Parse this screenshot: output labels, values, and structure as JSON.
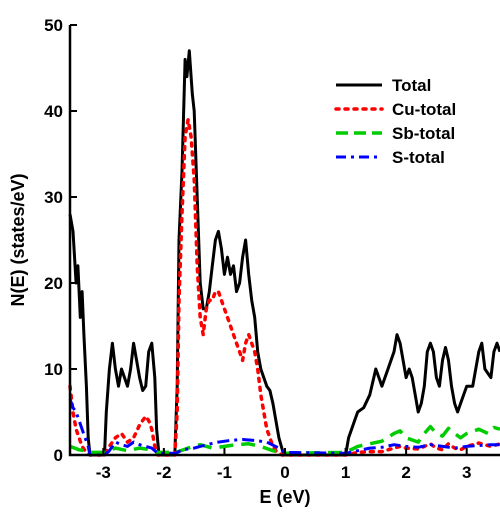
{
  "chart_data": {
    "type": "line",
    "title": "",
    "xlabel": "E (eV)",
    "ylabel": "N(E) (states/eV)",
    "xlim": [
      -3.55,
      3.55
    ],
    "ylim": [
      0,
      50
    ],
    "xticks": [
      -3,
      -2,
      -1,
      0,
      1,
      2,
      3
    ],
    "yticks": [
      0,
      10,
      20,
      30,
      40,
      50
    ],
    "grid": false,
    "legend_position": "top-right",
    "series": [
      {
        "name": "Total",
        "color": "#000000",
        "style": "solid",
        "points": [
          [
            -3.55,
            28
          ],
          [
            -3.5,
            26
          ],
          [
            -3.45,
            20
          ],
          [
            -3.42,
            22
          ],
          [
            -3.38,
            16
          ],
          [
            -3.35,
            19
          ],
          [
            -3.32,
            14
          ],
          [
            -3.28,
            8
          ],
          [
            -3.25,
            2
          ],
          [
            -3.22,
            0
          ],
          [
            -2.98,
            0
          ],
          [
            -2.95,
            5
          ],
          [
            -2.9,
            10
          ],
          [
            -2.85,
            13
          ],
          [
            -2.8,
            10
          ],
          [
            -2.75,
            8
          ],
          [
            -2.7,
            10
          ],
          [
            -2.65,
            9
          ],
          [
            -2.6,
            8
          ],
          [
            -2.55,
            10
          ],
          [
            -2.5,
            13
          ],
          [
            -2.45,
            11
          ],
          [
            -2.4,
            9
          ],
          [
            -2.35,
            7.5
          ],
          [
            -2.3,
            8
          ],
          [
            -2.25,
            12
          ],
          [
            -2.2,
            13
          ],
          [
            -2.15,
            9
          ],
          [
            -2.12,
            3
          ],
          [
            -2.08,
            0
          ],
          [
            -1.82,
            0
          ],
          [
            -1.78,
            8
          ],
          [
            -1.75,
            25
          ],
          [
            -1.7,
            33
          ],
          [
            -1.65,
            46
          ],
          [
            -1.62,
            44
          ],
          [
            -1.58,
            47
          ],
          [
            -1.53,
            42
          ],
          [
            -1.5,
            40
          ],
          [
            -1.45,
            30
          ],
          [
            -1.4,
            20
          ],
          [
            -1.35,
            17
          ],
          [
            -1.3,
            17
          ],
          [
            -1.25,
            19
          ],
          [
            -1.2,
            22
          ],
          [
            -1.15,
            25
          ],
          [
            -1.1,
            26
          ],
          [
            -1.05,
            24
          ],
          [
            -1.0,
            21
          ],
          [
            -0.95,
            23
          ],
          [
            -0.9,
            21
          ],
          [
            -0.85,
            22
          ],
          [
            -0.8,
            19
          ],
          [
            -0.75,
            20
          ],
          [
            -0.7,
            23
          ],
          [
            -0.65,
            25
          ],
          [
            -0.6,
            21
          ],
          [
            -0.55,
            18
          ],
          [
            -0.5,
            16
          ],
          [
            -0.45,
            12
          ],
          [
            -0.4,
            10
          ],
          [
            -0.35,
            9
          ],
          [
            -0.3,
            8
          ],
          [
            -0.25,
            7.5
          ],
          [
            -0.2,
            6
          ],
          [
            -0.15,
            4
          ],
          [
            -0.1,
            2
          ],
          [
            -0.02,
            0
          ],
          [
            1.0,
            0
          ],
          [
            1.05,
            2
          ],
          [
            1.1,
            3
          ],
          [
            1.15,
            4
          ],
          [
            1.2,
            5
          ],
          [
            1.3,
            5.5
          ],
          [
            1.4,
            7
          ],
          [
            1.5,
            10
          ],
          [
            1.55,
            9
          ],
          [
            1.6,
            8
          ],
          [
            1.7,
            10
          ],
          [
            1.8,
            12
          ],
          [
            1.85,
            14
          ],
          [
            1.9,
            13
          ],
          [
            1.95,
            11
          ],
          [
            2.0,
            9
          ],
          [
            2.05,
            10
          ],
          [
            2.1,
            9
          ],
          [
            2.15,
            7
          ],
          [
            2.2,
            5
          ],
          [
            2.25,
            6
          ],
          [
            2.3,
            8
          ],
          [
            2.35,
            12
          ],
          [
            2.4,
            13
          ],
          [
            2.45,
            12
          ],
          [
            2.5,
            9
          ],
          [
            2.55,
            8
          ],
          [
            2.6,
            11
          ],
          [
            2.65,
            12.5
          ],
          [
            2.7,
            11
          ],
          [
            2.75,
            8
          ],
          [
            2.8,
            6
          ],
          [
            2.85,
            5
          ],
          [
            2.9,
            6
          ],
          [
            3.0,
            8
          ],
          [
            3.1,
            8
          ],
          [
            3.2,
            12
          ],
          [
            3.25,
            13
          ],
          [
            3.3,
            10
          ],
          [
            3.4,
            9
          ],
          [
            3.45,
            12
          ],
          [
            3.5,
            13
          ],
          [
            3.55,
            12
          ]
        ]
      },
      {
        "name": "Cu-total",
        "color": "#ff0000",
        "style": "dotted",
        "points": [
          [
            -3.55,
            8
          ],
          [
            -3.5,
            5
          ],
          [
            -3.45,
            3
          ],
          [
            -3.4,
            2
          ],
          [
            -3.35,
            1
          ],
          [
            -3.3,
            0.5
          ],
          [
            -3.22,
            0
          ],
          [
            -2.98,
            0
          ],
          [
            -2.9,
            1
          ],
          [
            -2.8,
            2
          ],
          [
            -2.7,
            2.5
          ],
          [
            -2.6,
            1.5
          ],
          [
            -2.5,
            2
          ],
          [
            -2.4,
            3.5
          ],
          [
            -2.3,
            4.5
          ],
          [
            -2.25,
            4
          ],
          [
            -2.2,
            3
          ],
          [
            -2.15,
            1
          ],
          [
            -2.1,
            0
          ],
          [
            -1.82,
            0
          ],
          [
            -1.78,
            5
          ],
          [
            -1.75,
            18
          ],
          [
            -1.7,
            28
          ],
          [
            -1.65,
            37
          ],
          [
            -1.6,
            39
          ],
          [
            -1.55,
            37
          ],
          [
            -1.5,
            32
          ],
          [
            -1.45,
            22
          ],
          [
            -1.4,
            16
          ],
          [
            -1.35,
            14
          ],
          [
            -1.3,
            17
          ],
          [
            -1.25,
            18
          ],
          [
            -1.2,
            18
          ],
          [
            -1.15,
            19
          ],
          [
            -1.1,
            19
          ],
          [
            -1.05,
            18
          ],
          [
            -1.0,
            17
          ],
          [
            -0.95,
            16
          ],
          [
            -0.9,
            15
          ],
          [
            -0.85,
            14
          ],
          [
            -0.8,
            13
          ],
          [
            -0.75,
            12
          ],
          [
            -0.7,
            11
          ],
          [
            -0.65,
            13
          ],
          [
            -0.6,
            14
          ],
          [
            -0.55,
            13
          ],
          [
            -0.5,
            12
          ],
          [
            -0.45,
            10
          ],
          [
            -0.4,
            7
          ],
          [
            -0.35,
            5
          ],
          [
            -0.3,
            3
          ],
          [
            -0.25,
            2
          ],
          [
            -0.2,
            1
          ],
          [
            -0.15,
            0.5
          ],
          [
            -0.05,
            0
          ],
          [
            1.0,
            0
          ],
          [
            1.2,
            0.3
          ],
          [
            1.4,
            0.4
          ],
          [
            1.6,
            0.4
          ],
          [
            1.8,
            0.8
          ],
          [
            1.9,
            1
          ],
          [
            2.0,
            0.8
          ],
          [
            2.2,
            0.7
          ],
          [
            2.3,
            1
          ],
          [
            2.4,
            1.3
          ],
          [
            2.5,
            0.8
          ],
          [
            2.6,
            0.6
          ],
          [
            2.7,
            1.3
          ],
          [
            2.8,
            0.8
          ],
          [
            2.9,
            0.6
          ],
          [
            3.0,
            1
          ],
          [
            3.1,
            1.2
          ],
          [
            3.2,
            1.4
          ],
          [
            3.3,
            1.2
          ],
          [
            3.4,
            1
          ],
          [
            3.55,
            1.3
          ]
        ]
      },
      {
        "name": "Sb-total",
        "color": "#00cc00",
        "style": "dashed",
        "points": [
          [
            -3.55,
            1
          ],
          [
            -3.4,
            0.6
          ],
          [
            -3.3,
            0.5
          ],
          [
            -3.2,
            0.3
          ],
          [
            -3.0,
            0.3
          ],
          [
            -2.8,
            0.8
          ],
          [
            -2.6,
            0.5
          ],
          [
            -2.4,
            0.8
          ],
          [
            -2.2,
            0.6
          ],
          [
            -2.1,
            0.3
          ],
          [
            -1.8,
            0.3
          ],
          [
            -1.6,
            0.8
          ],
          [
            -1.4,
            1.2
          ],
          [
            -1.2,
            0.8
          ],
          [
            -1.0,
            1
          ],
          [
            -0.8,
            1.2
          ],
          [
            -0.6,
            1.3
          ],
          [
            -0.4,
            1
          ],
          [
            -0.2,
            0.5
          ],
          [
            0,
            0.2
          ],
          [
            1.0,
            0.3
          ],
          [
            1.2,
            1
          ],
          [
            1.4,
            1.3
          ],
          [
            1.6,
            1.6
          ],
          [
            1.8,
            2.5
          ],
          [
            1.9,
            2.8
          ],
          [
            2.0,
            2
          ],
          [
            2.2,
            1.5
          ],
          [
            2.3,
            2.5
          ],
          [
            2.4,
            3.3
          ],
          [
            2.5,
            2.5
          ],
          [
            2.6,
            2.2
          ],
          [
            2.7,
            3.1
          ],
          [
            2.8,
            2.5
          ],
          [
            2.9,
            2
          ],
          [
            3.0,
            2.5
          ],
          [
            3.2,
            3
          ],
          [
            3.35,
            2.5
          ],
          [
            3.45,
            3.2
          ],
          [
            3.55,
            3
          ]
        ]
      },
      {
        "name": "S-total",
        "color": "#0000ff",
        "style": "dashdot",
        "points": [
          [
            -3.55,
            6.5
          ],
          [
            -3.5,
            5.5
          ],
          [
            -3.45,
            5
          ],
          [
            -3.4,
            4
          ],
          [
            -3.35,
            3
          ],
          [
            -3.3,
            2
          ],
          [
            -3.25,
            1
          ],
          [
            -3.22,
            0
          ],
          [
            -2.98,
            0
          ],
          [
            -2.9,
            0.5
          ],
          [
            -2.8,
            1.5
          ],
          [
            -2.7,
            1.2
          ],
          [
            -2.6,
            1
          ],
          [
            -2.5,
            1.5
          ],
          [
            -2.4,
            1.2
          ],
          [
            -2.3,
            1
          ],
          [
            -2.2,
            0.8
          ],
          [
            -2.1,
            0.2
          ],
          [
            -1.8,
            0.2
          ],
          [
            -1.7,
            0.6
          ],
          [
            -1.5,
            0.8
          ],
          [
            -1.3,
            1.2
          ],
          [
            -1.1,
            1.5
          ],
          [
            -0.9,
            1.7
          ],
          [
            -0.7,
            1.8
          ],
          [
            -0.5,
            1.7
          ],
          [
            -0.3,
            1.5
          ],
          [
            -0.1,
            0.8
          ],
          [
            0,
            0.3
          ],
          [
            1.0,
            0.2
          ],
          [
            1.2,
            0.5
          ],
          [
            1.4,
            0.8
          ],
          [
            1.6,
            0.9
          ],
          [
            1.8,
            1.2
          ],
          [
            2.0,
            1
          ],
          [
            2.2,
            0.9
          ],
          [
            2.4,
            1.2
          ],
          [
            2.6,
            1
          ],
          [
            2.8,
            0.8
          ],
          [
            3.0,
            1
          ],
          [
            3.2,
            1.1
          ],
          [
            3.4,
            1.2
          ],
          [
            3.55,
            1.2
          ]
        ]
      }
    ]
  }
}
